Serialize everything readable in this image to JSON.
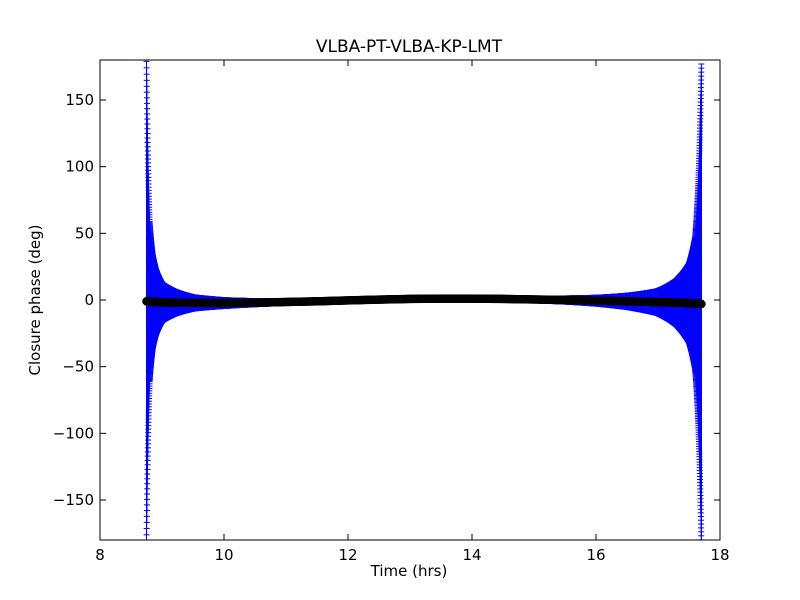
{
  "chart_data": {
    "type": "scatter",
    "title": "VLBA-PT-VLBA-KP-LMT",
    "xlabel": "Time (hrs)",
    "ylabel": "Closure phase (deg)",
    "xlim": [
      8,
      18
    ],
    "ylim": [
      -180,
      180
    ],
    "xticks": [
      8,
      10,
      12,
      14,
      16,
      18
    ],
    "yticks": [
      -150,
      -100,
      -50,
      0,
      50,
      100,
      150
    ],
    "xtick_labels": [
      "8",
      "10",
      "12",
      "14",
      "16",
      "18"
    ],
    "ytick_labels": [
      "−150",
      "−100",
      "−50",
      "0",
      "50",
      "100",
      "150"
    ],
    "grid": false,
    "legend": "none",
    "colors": {
      "errorbar": "#0000ff",
      "marker": "#000000"
    },
    "series": [
      {
        "x": [
          8.75,
          8.8,
          8.85,
          8.9,
          9.0,
          9.2,
          9.5,
          10.0,
          10.5,
          11.0,
          11.5,
          12.0,
          12.5,
          13.0,
          13.5,
          14.0,
          14.5,
          15.0,
          15.5,
          16.0,
          16.5,
          17.0,
          17.3,
          17.5,
          17.6,
          17.65,
          17.7
        ],
        "y": [
          -1.0,
          -1.2,
          -1.3,
          -1.5,
          -1.8,
          -2.0,
          -2.2,
          -2.3,
          -2.0,
          -1.5,
          -1.0,
          -0.3,
          0.3,
          0.8,
          1.0,
          1.0,
          0.8,
          0.4,
          0.0,
          -0.5,
          -1.0,
          -1.6,
          -2.0,
          -2.3,
          -2.5,
          -2.7,
          -3.0
        ],
        "y_error": [
          180,
          60,
          35,
          25,
          15,
          10,
          6,
          4,
          3,
          2.5,
          2,
          2,
          2,
          2,
          2,
          2,
          2,
          2.5,
          3,
          4,
          6,
          10,
          18,
          30,
          50,
          90,
          180
        ]
      }
    ]
  }
}
